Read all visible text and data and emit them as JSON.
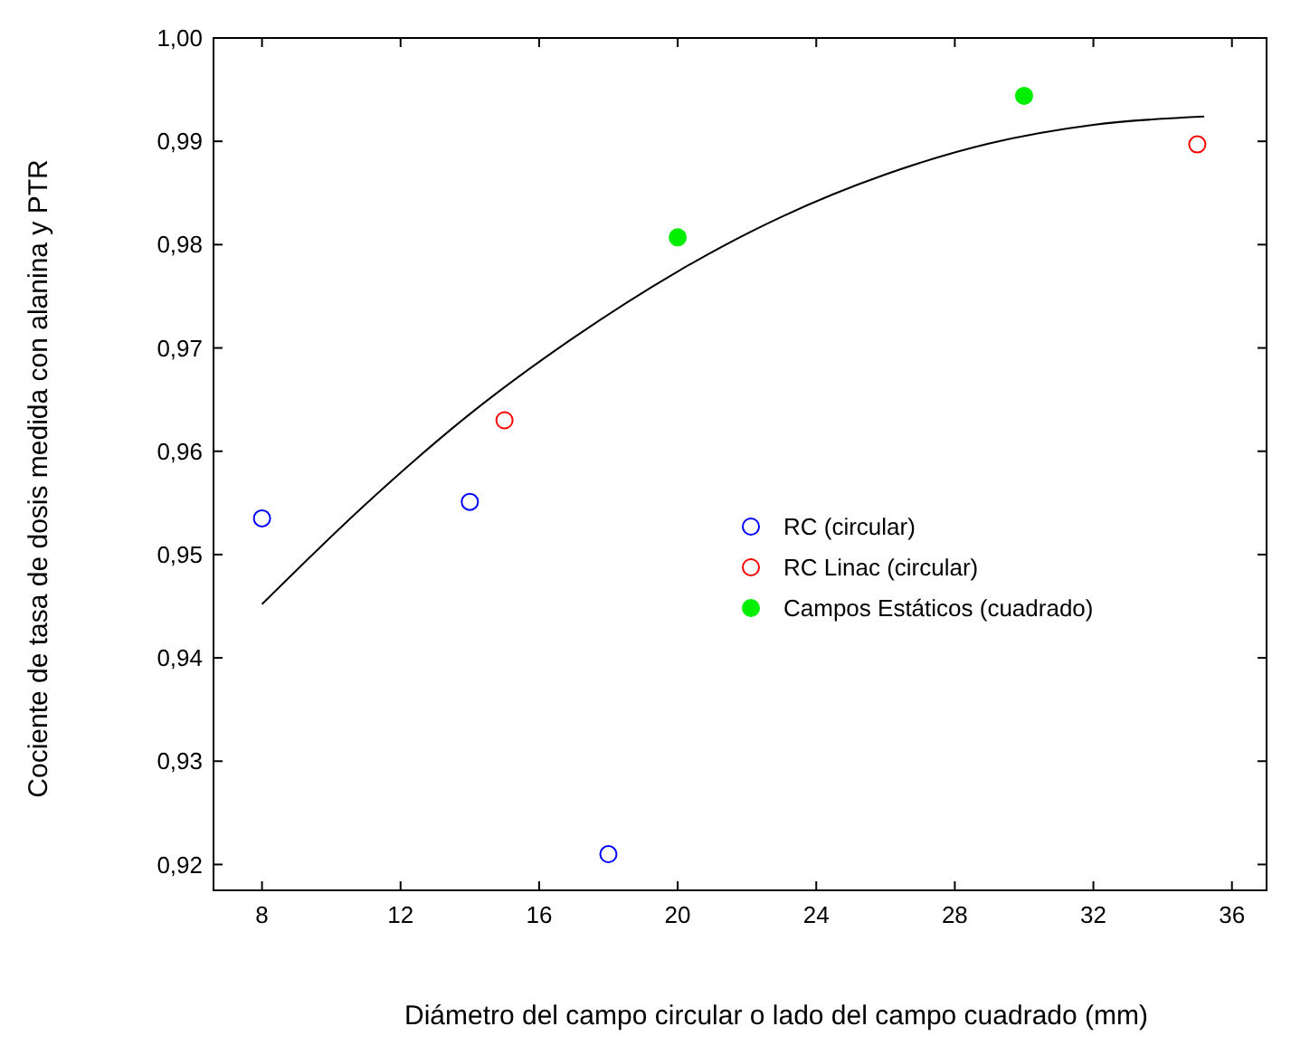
{
  "chart_data": {
    "type": "scatter",
    "xlabel": "Diámetro del campo circular  o lado del campo cuadrado (mm)",
    "ylabel": "Cociente de tasa de dosis medida con alanina y PTR",
    "xlim": [
      6.6,
      37
    ],
    "ylim": [
      0.9175,
      1.0
    ],
    "xticks": [
      8,
      12,
      16,
      20,
      24,
      28,
      32,
      36
    ],
    "yticks": [
      {
        "value": 0.92,
        "label": "0,92"
      },
      {
        "value": 0.93,
        "label": "0,93"
      },
      {
        "value": 0.94,
        "label": "0,94"
      },
      {
        "value": 0.95,
        "label": "0,95"
      },
      {
        "value": 0.96,
        "label": "0,96"
      },
      {
        "value": 0.97,
        "label": "0,97"
      },
      {
        "value": 0.98,
        "label": "0,98"
      },
      {
        "value": 0.99,
        "label": "0,99"
      },
      {
        "value": 1.0,
        "label": "1,00"
      }
    ],
    "grid": false,
    "legend": "right",
    "series": [
      {
        "name": "RC (circular)",
        "color": "#0000ff",
        "marker": "circle",
        "x": [
          8,
          14,
          18
        ],
        "values": [
          0.9535,
          0.9551,
          0.921
        ]
      },
      {
        "name": "RC Linac (circular)",
        "color": "#ff0000",
        "marker": "circle",
        "x": [
          15,
          35
        ],
        "values": [
          0.963,
          0.9897
        ]
      },
      {
        "name": "Campos Estáticos (cuadrado)",
        "color": "#00ee00",
        "marker": "circle",
        "x": [
          20,
          30
        ],
        "values": [
          0.9807,
          0.9944
        ]
      },
      {
        "type": "line",
        "color": "#000000",
        "marker": "none",
        "x": [
          8,
          11,
          14,
          17,
          20,
          23,
          26,
          29,
          32,
          35.2
        ],
        "values": [
          0.9452,
          0.9549,
          0.9636,
          0.971,
          0.9774,
          0.9827,
          0.9868,
          0.9898,
          0.9916,
          0.9924
        ]
      }
    ]
  }
}
